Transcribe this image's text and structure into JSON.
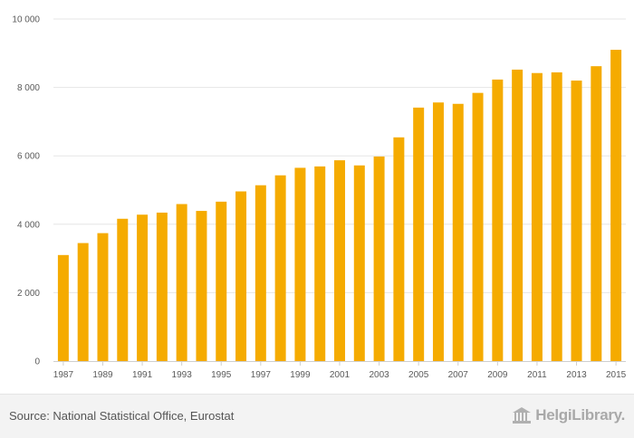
{
  "chart_data": {
    "type": "bar",
    "categories": [
      "1987",
      "1988",
      "1989",
      "1990",
      "1991",
      "1992",
      "1993",
      "1994",
      "1995",
      "1996",
      "1997",
      "1998",
      "1999",
      "2000",
      "2001",
      "2002",
      "2003",
      "2004",
      "2005",
      "2006",
      "2007",
      "2008",
      "2009",
      "2010",
      "2011",
      "2012",
      "2013",
      "2014",
      "2015"
    ],
    "x_tick_labels": [
      "1987",
      "1989",
      "1991",
      "1993",
      "1995",
      "1997",
      "1999",
      "2001",
      "2003",
      "2005",
      "2007",
      "2009",
      "2011",
      "2013",
      "2015"
    ],
    "values": [
      3100,
      3450,
      3740,
      4160,
      4280,
      4340,
      4590,
      4390,
      4660,
      4960,
      5140,
      5430,
      5650,
      5690,
      5870,
      5720,
      5980,
      6540,
      7410,
      7560,
      7520,
      7840,
      8230,
      8520,
      8420,
      8440,
      8200,
      8620,
      9100
    ],
    "ylim": [
      0,
      10000
    ],
    "y_ticks": [
      0,
      2000,
      4000,
      6000,
      8000,
      10000
    ],
    "y_tick_labels": [
      "0",
      "2 000",
      "4 000",
      "6 000",
      "8 000",
      "10 000"
    ],
    "title": "",
    "xlabel": "",
    "ylabel": "",
    "grid": true,
    "bar_color": "#f5ab00"
  },
  "footer": {
    "source": "Source: National Statistical Office, Eurostat",
    "logo_text": "HelgiLibrary."
  }
}
